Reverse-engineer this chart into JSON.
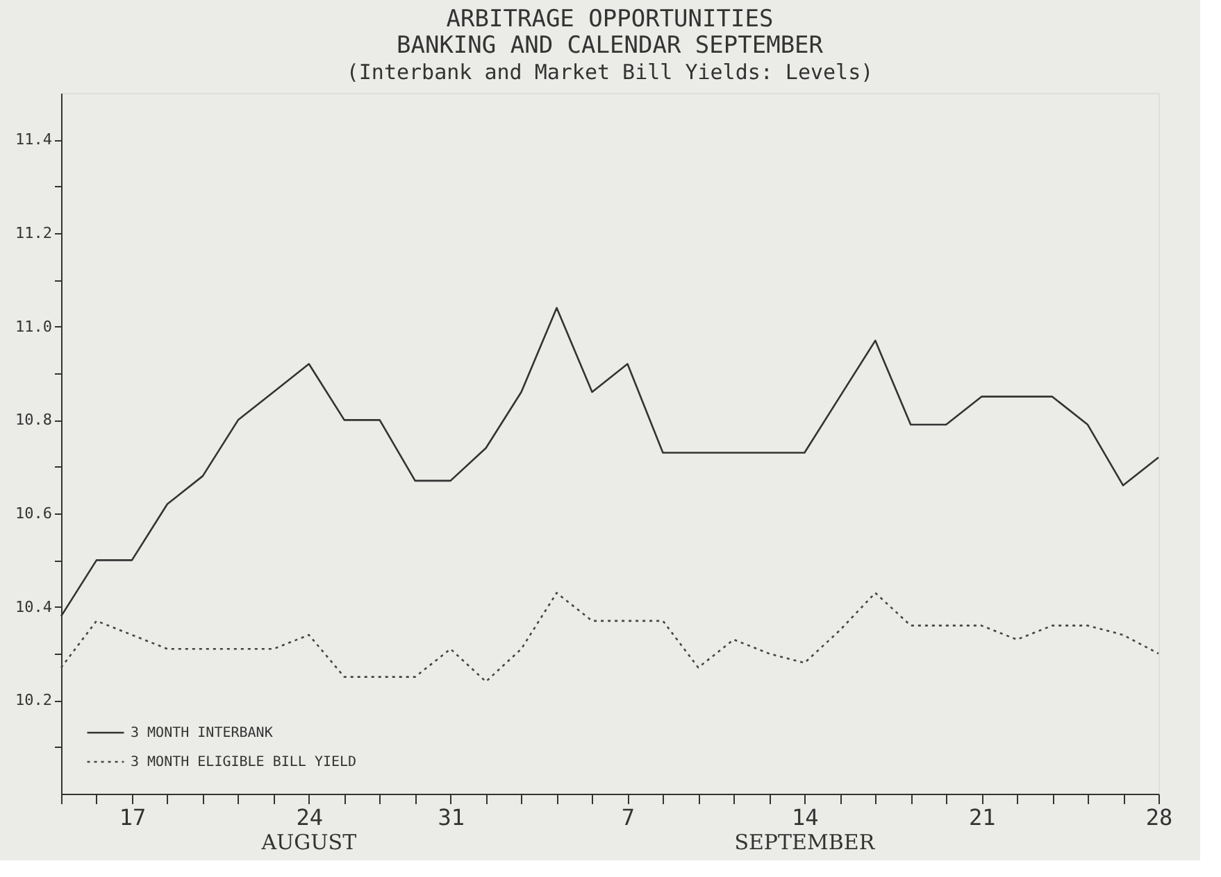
{
  "chart_data": {
    "type": "line",
    "title": "ARBITRAGE OPPORTUNITIES\nBANKING AND CALENDAR SEPTEMBER",
    "subtitle": "(Interbank and Market Bill Yields: Levels)",
    "categories": [
      null,
      null,
      "17",
      null,
      null,
      null,
      null,
      "24",
      null,
      null,
      null,
      "31",
      null,
      null,
      null,
      null,
      "7",
      null,
      null,
      null,
      null,
      "14",
      null,
      null,
      null,
      null,
      "21",
      null,
      null,
      null,
      null,
      "28"
    ],
    "series": [
      {
        "name": "3 MONTH INTERBANK",
        "color": "#333333",
        "line_style": "solid",
        "values": [
          10.38,
          10.5,
          10.5,
          10.62,
          10.68,
          10.8,
          10.86,
          10.92,
          10.8,
          10.8,
          10.67,
          10.67,
          10.74,
          10.86,
          11.04,
          10.86,
          10.92,
          10.73,
          10.73,
          10.73,
          10.73,
          10.73,
          10.85,
          10.97,
          10.79,
          10.79,
          10.85,
          10.85,
          10.85,
          10.79,
          10.66,
          10.72
        ]
      },
      {
        "name": "3 MONTH ELIGIBLE BILL YIELD",
        "color": "#444444",
        "line_style": "dotted",
        "values": [
          10.27,
          10.37,
          10.34,
          10.31,
          10.31,
          10.31,
          10.31,
          10.34,
          10.25,
          10.25,
          10.25,
          10.31,
          10.24,
          10.31,
          10.43,
          10.37,
          10.37,
          10.37,
          10.27,
          10.33,
          10.3,
          10.28,
          10.35,
          10.43,
          10.36,
          10.36,
          10.36,
          10.33,
          10.36,
          10.36,
          10.34,
          10.3
        ]
      }
    ],
    "ylim": [
      10.0,
      11.5
    ],
    "yticks": [
      {
        "value": 10.1,
        "label": null
      },
      10.2,
      {
        "value": 10.3,
        "label": null
      },
      10.4,
      {
        "value": 10.5,
        "label": null
      },
      10.6,
      {
        "value": 10.7,
        "label": null
      },
      10.8,
      {
        "value": 10.9,
        "label": null
      },
      {
        "value": 11,
        "label": "11.0"
      },
      {
        "value": 11.1,
        "label": null
      },
      11.2,
      {
        "value": 11.3,
        "label": null
      },
      11.4
    ],
    "annotations": [
      "AUGUST",
      "SEPTEMBER"
    ],
    "legend": "bottom left",
    "grid": false,
    "marker": "none"
  }
}
